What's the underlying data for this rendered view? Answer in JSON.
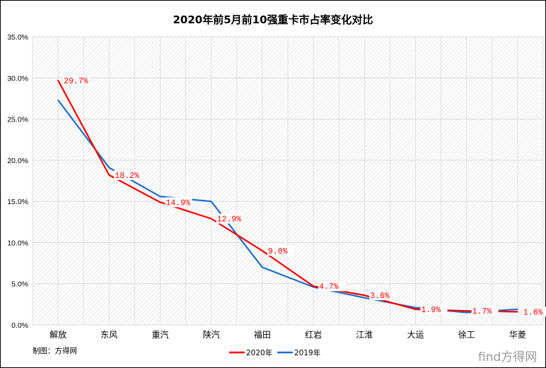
{
  "chart_data": {
    "type": "line",
    "title": "2020年前5月前10强重卡市占率变化对比",
    "categories": [
      "解放",
      "东风",
      "重汽",
      "陕汽",
      "福田",
      "红岩",
      "江淮",
      "大运",
      "徐工",
      "华菱"
    ],
    "series": [
      {
        "name": "2020年",
        "color": "#ff0000",
        "values": [
          29.7,
          18.2,
          14.9,
          12.9,
          9.0,
          4.7,
          3.6,
          1.9,
          1.7,
          1.6
        ],
        "labels": [
          "29.7%",
          "18.2%",
          "14.9%",
          "12.9%",
          "9.0%",
          "4.7%",
          "3.6%",
          "1.9%",
          "1.7%",
          "1.6%"
        ]
      },
      {
        "name": "2019年",
        "color": "#1f6fc5",
        "values": [
          27.3,
          19.1,
          15.6,
          15.0,
          7.0,
          4.6,
          3.3,
          2.1,
          1.5,
          1.9
        ]
      }
    ],
    "yticks": [
      "0.0%",
      "5.0%",
      "10.0%",
      "15.0%",
      "20.0%",
      "25.0%",
      "30.0%",
      "35.0%"
    ],
    "ylim": [
      0,
      35
    ],
    "xlabel": "",
    "ylabel": "",
    "grid": true,
    "legend": "bottom"
  },
  "footer": {
    "source": "制图：方得网",
    "watermark": "find方得网"
  }
}
